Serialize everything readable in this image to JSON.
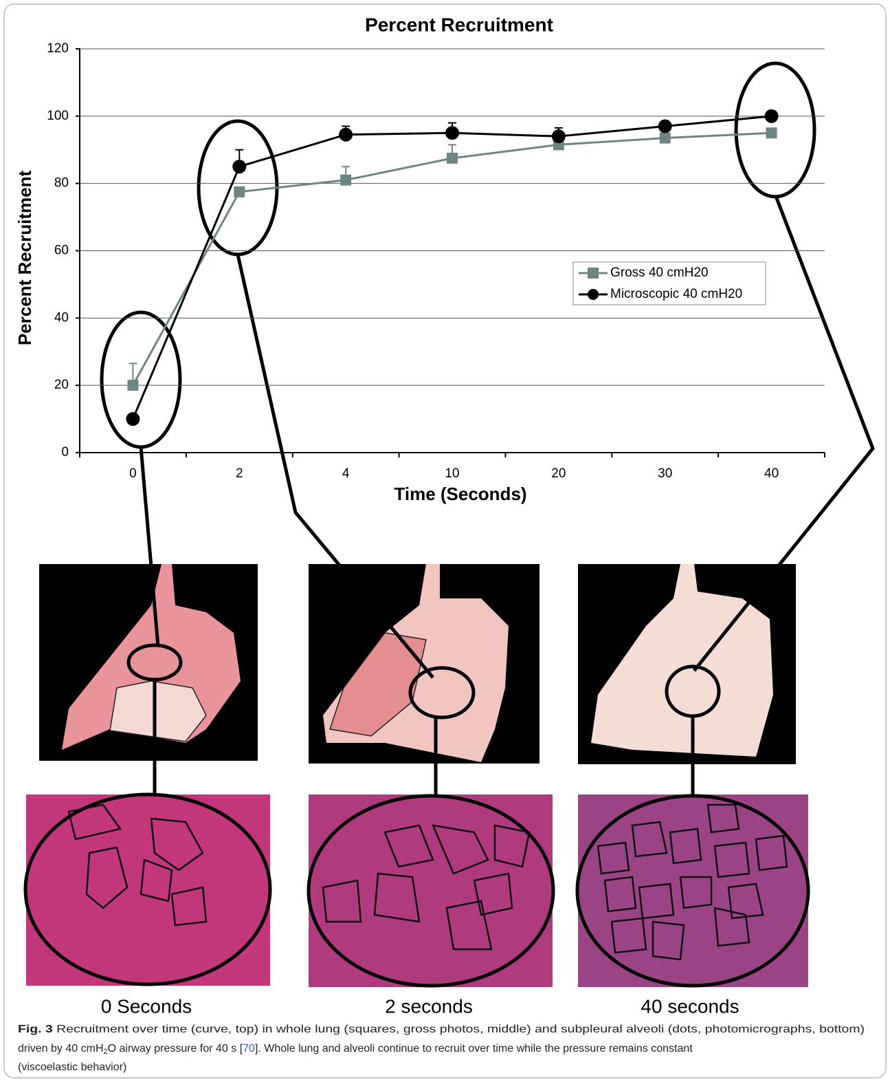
{
  "chart_data": {
    "type": "line",
    "title": "Percent Recruitment",
    "x_label": "Time (Seconds)",
    "y_label": "Percent Recruitment",
    "categories": [
      "0",
      "2",
      "4",
      "10",
      "20",
      "30",
      "40"
    ],
    "ylim": [
      0,
      120
    ],
    "yticks": [
      0,
      20,
      40,
      60,
      80,
      100,
      120
    ],
    "grid": true,
    "legend_position": "center-right",
    "series": [
      {
        "name": "Gross 40 cmH20",
        "color": "#6f8583",
        "marker": "square",
        "values": [
          20,
          77.5,
          81,
          87.5,
          91.5,
          93.5,
          95
        ],
        "errors": [
          6.5,
          null,
          4,
          4,
          null,
          null,
          null
        ]
      },
      {
        "name": "Microscopic 40 cmH20",
        "color": "#000000",
        "marker": "circle",
        "values": [
          10,
          85,
          94.5,
          95,
          94,
          97,
          100
        ],
        "errors": [
          null,
          5,
          2.5,
          3,
          2.5,
          1,
          null
        ]
      }
    ]
  },
  "panels": {
    "labels": [
      "0 Seconds",
      "2 seconds",
      "40 seconds"
    ]
  },
  "caption": {
    "label": "Fig. 3",
    "text_1": " Recruitment over time (curve, top) in whole lung (squares, gross photos, middle) and subpleural alveoli (dots, photomicrographs, bottom)",
    "text_2": "driven by 40 cmH",
    "subscript": "2",
    "text_3": "O airway pressure for 40 s [",
    "reference": "70",
    "text_4": "]. Whole lung and alveoli continue to recruit over time while the pressure remains constant",
    "text_5": "(viscoelastic behavior)"
  }
}
